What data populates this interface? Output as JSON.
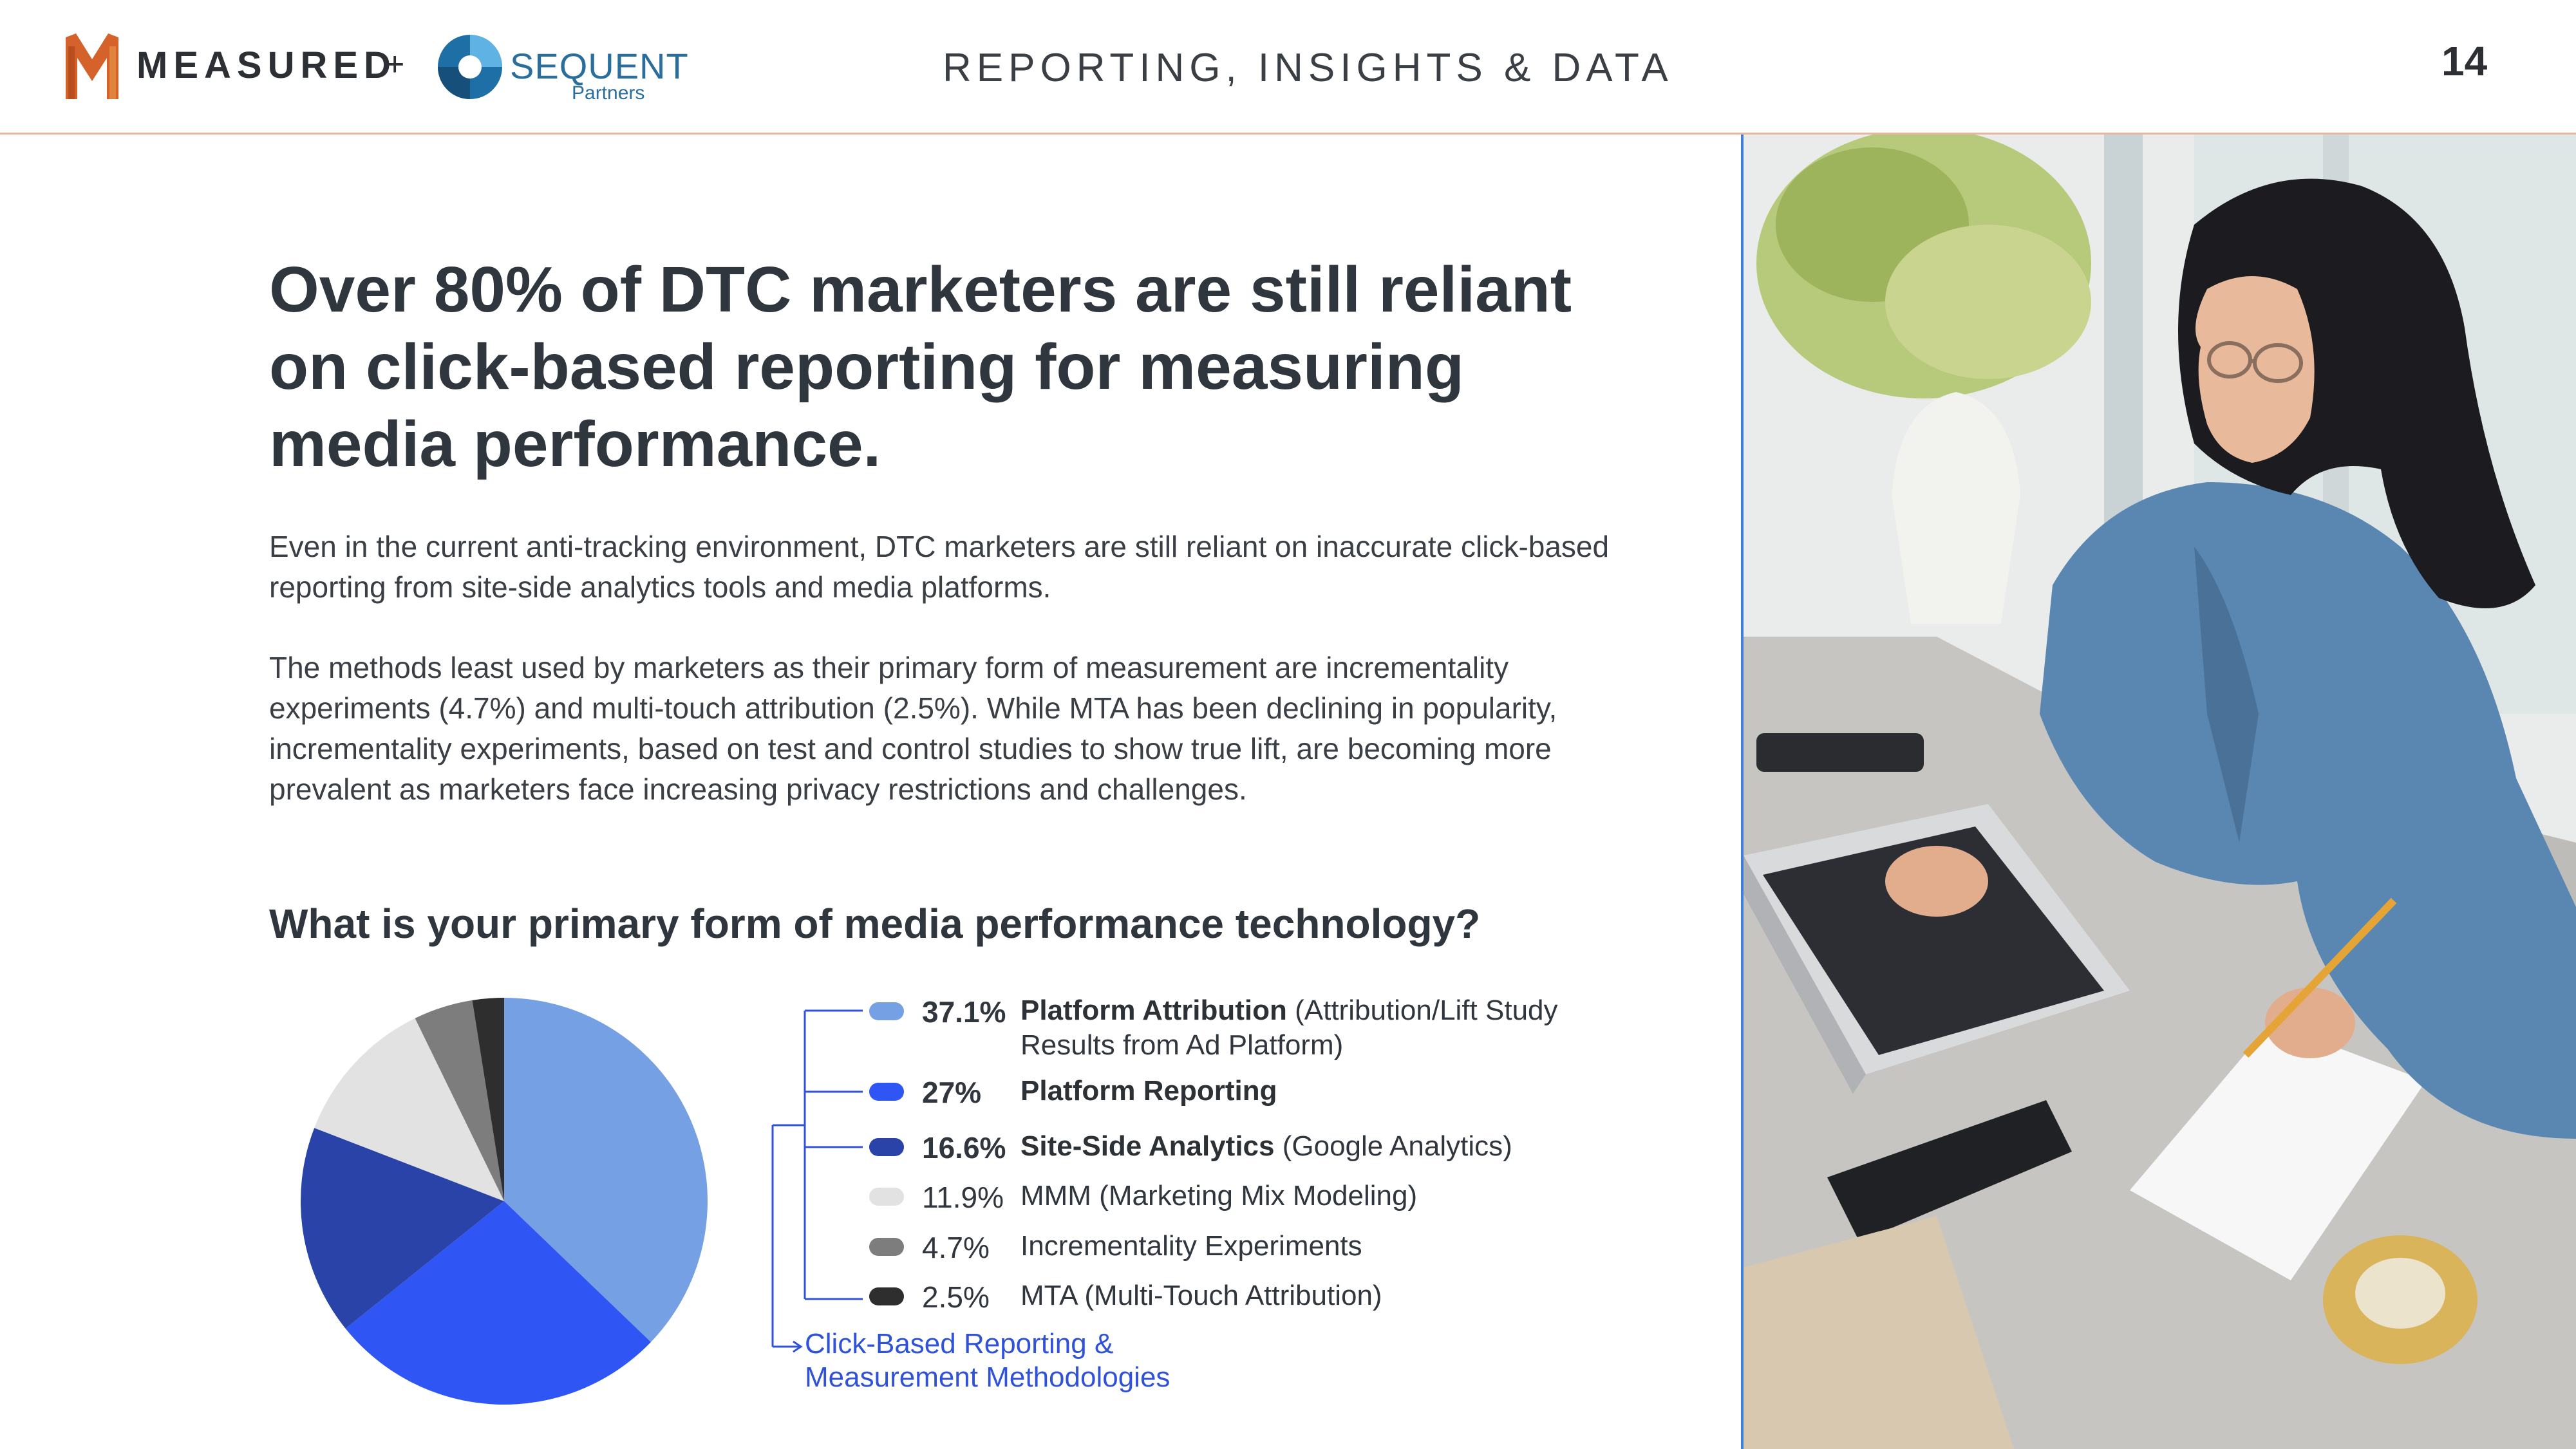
{
  "header": {
    "brand_measured": "MEASURED",
    "plus": "+",
    "brand_sequent": "SEQUENT",
    "brand_sequent_sub": "Partners",
    "section_title": "REPORTING, INSIGHTS & DATA",
    "page_number": "14"
  },
  "main": {
    "headline": "Over 80% of DTC marketers are still reliant on click-based reporting for measuring media performance.",
    "paragraph1": "Even in the current anti-tracking environment, DTC marketers are still reliant on inaccurate click-based reporting from site-side analytics tools and media platforms.",
    "paragraph2": "The methods least used by marketers as their primary form of measurement are incrementality experiments (4.7%) and multi-touch attribution (2.5%). While MTA has been declining in popularity, incrementality experiments, based on test and control studies to show true lift, are becoming more prevalent as marketers face increasing privacy restrictions and challenges.",
    "question": "What is your primary form of media performance technology?"
  },
  "chart_data": {
    "type": "pie",
    "title": "What is your primary form of media performance technology?",
    "slices": [
      {
        "label": "Platform Attribution",
        "detail": " (Attribution/Lift Study Results from Ad Platform)",
        "value": 37.1,
        "pct_text": "37.1%",
        "bold": true,
        "color": "#76a0e4"
      },
      {
        "label": "Platform Reporting",
        "detail": "",
        "value": 27,
        "pct_text": "27%",
        "bold": true,
        "color": "#2f55f5"
      },
      {
        "label": "Site-Side Analytics",
        "detail": " (Google Analytics)",
        "value": 16.6,
        "pct_text": "16.6%",
        "bold": true,
        "color": "#2a43a8"
      },
      {
        "label": "MMM (Marketing Mix Modeling)",
        "detail": "",
        "value": 11.9,
        "pct_text": "11.9%",
        "bold": false,
        "color": "#e2e2e2"
      },
      {
        "label": "Incrementality Experiments",
        "detail": "",
        "value": 4.7,
        "pct_text": "4.7%",
        "bold": false,
        "color": "#7d7d7d"
      },
      {
        "label": "MTA (Multi-Touch Attribution)",
        "detail": "",
        "value": 2.5,
        "pct_text": "2.5%",
        "bold": false,
        "color": "#2e2e2e"
      }
    ],
    "callout": "Click-Based Reporting & Measurement Methodologies",
    "callout_color": "#2f52d8"
  },
  "colors": {
    "header_rule": "#e7b8a0",
    "photo_edge": "#3f7fd6",
    "text_dark": "#30363d"
  }
}
